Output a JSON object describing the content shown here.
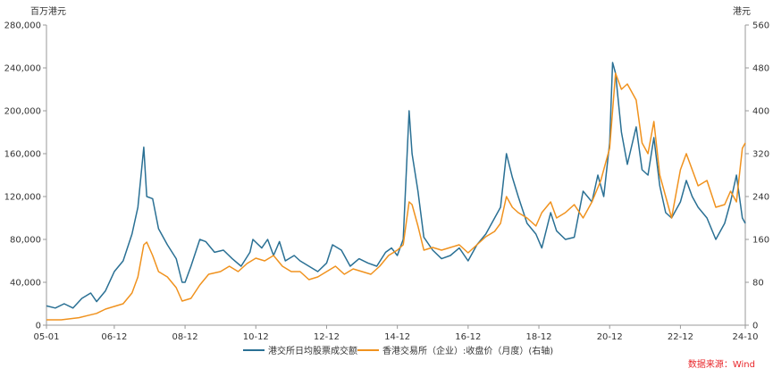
{
  "chart_data": {
    "type": "line",
    "left_unit": "百万港元",
    "right_unit": "港元",
    "x_ticks": [
      "05-01",
      "06-12",
      "08-12",
      "10-12",
      "12-12",
      "14-12",
      "16-12",
      "18-12",
      "20-12",
      "22-12",
      "24-10"
    ],
    "y_left": {
      "min": 0,
      "max": 280000,
      "ticks": [
        "0",
        "40,000",
        "80,000",
        "120,000",
        "160,000",
        "200,000",
        "240,000",
        "280,000"
      ]
    },
    "y_right": {
      "min": 0,
      "max": 560,
      "ticks": [
        "0",
        "80",
        "160",
        "240",
        "320",
        "400",
        "480",
        "560"
      ]
    },
    "grid": false,
    "legend_position": "bottom",
    "series": [
      {
        "name": "港交所日均股票成交额",
        "axis": "left",
        "color": "#2a7094",
        "points": [
          [
            "2005-01",
            18000
          ],
          [
            "2005-04",
            16000
          ],
          [
            "2005-07",
            20000
          ],
          [
            "2005-10",
            16000
          ],
          [
            "2006-01",
            25000
          ],
          [
            "2006-04",
            30000
          ],
          [
            "2006-06",
            22000
          ],
          [
            "2006-09",
            32000
          ],
          [
            "2006-12",
            50000
          ],
          [
            "2007-03",
            60000
          ],
          [
            "2007-06",
            85000
          ],
          [
            "2007-08",
            110000
          ],
          [
            "2007-10",
            166000
          ],
          [
            "2007-11",
            120000
          ],
          [
            "2008-01",
            118000
          ],
          [
            "2008-03",
            90000
          ],
          [
            "2008-06",
            75000
          ],
          [
            "2008-09",
            62000
          ],
          [
            "2008-11",
            40000
          ],
          [
            "2008-12",
            40000
          ],
          [
            "2009-02",
            55000
          ],
          [
            "2009-05",
            80000
          ],
          [
            "2009-07",
            78000
          ],
          [
            "2009-10",
            68000
          ],
          [
            "2010-01",
            70000
          ],
          [
            "2010-04",
            62000
          ],
          [
            "2010-07",
            55000
          ],
          [
            "2010-10",
            68000
          ],
          [
            "2010-11",
            80000
          ],
          [
            "2011-02",
            72000
          ],
          [
            "2011-04",
            80000
          ],
          [
            "2011-06",
            65000
          ],
          [
            "2011-08",
            78000
          ],
          [
            "2011-10",
            60000
          ],
          [
            "2012-01",
            65000
          ],
          [
            "2012-03",
            60000
          ],
          [
            "2012-06",
            55000
          ],
          [
            "2012-09",
            50000
          ],
          [
            "2012-12",
            58000
          ],
          [
            "2013-02",
            75000
          ],
          [
            "2013-05",
            70000
          ],
          [
            "2013-08",
            55000
          ],
          [
            "2013-11",
            62000
          ],
          [
            "2014-02",
            58000
          ],
          [
            "2014-05",
            55000
          ],
          [
            "2014-08",
            68000
          ],
          [
            "2014-10",
            72000
          ],
          [
            "2014-12",
            65000
          ],
          [
            "2015-02",
            80000
          ],
          [
            "2015-04",
            200000
          ],
          [
            "2015-05",
            160000
          ],
          [
            "2015-07",
            125000
          ],
          [
            "2015-09",
            82000
          ],
          [
            "2015-12",
            70000
          ],
          [
            "2016-03",
            62000
          ],
          [
            "2016-06",
            65000
          ],
          [
            "2016-09",
            72000
          ],
          [
            "2016-12",
            60000
          ],
          [
            "2017-03",
            75000
          ],
          [
            "2017-06",
            85000
          ],
          [
            "2017-09",
            100000
          ],
          [
            "2017-11",
            110000
          ],
          [
            "2018-01",
            160000
          ],
          [
            "2018-03",
            138000
          ],
          [
            "2018-05",
            120000
          ],
          [
            "2018-08",
            95000
          ],
          [
            "2018-11",
            85000
          ],
          [
            "2019-01",
            72000
          ],
          [
            "2019-04",
            105000
          ],
          [
            "2019-06",
            88000
          ],
          [
            "2019-09",
            80000
          ],
          [
            "2019-12",
            82000
          ],
          [
            "2020-03",
            125000
          ],
          [
            "2020-06",
            115000
          ],
          [
            "2020-08",
            140000
          ],
          [
            "2020-10",
            120000
          ],
          [
            "2020-12",
            170000
          ],
          [
            "2021-01",
            245000
          ],
          [
            "2021-02",
            235000
          ],
          [
            "2021-04",
            180000
          ],
          [
            "2021-06",
            150000
          ],
          [
            "2021-09",
            185000
          ],
          [
            "2021-11",
            145000
          ],
          [
            "2022-01",
            140000
          ],
          [
            "2022-03",
            175000
          ],
          [
            "2022-05",
            130000
          ],
          [
            "2022-07",
            105000
          ],
          [
            "2022-09",
            100000
          ],
          [
            "2022-12",
            115000
          ],
          [
            "2023-02",
            135000
          ],
          [
            "2023-04",
            120000
          ],
          [
            "2023-06",
            110000
          ],
          [
            "2023-09",
            100000
          ],
          [
            "2023-12",
            80000
          ],
          [
            "2024-03",
            95000
          ],
          [
            "2024-05",
            115000
          ],
          [
            "2024-07",
            140000
          ],
          [
            "2024-09",
            100000
          ],
          [
            "2024-10",
            95000
          ]
        ]
      },
      {
        "name": "香港交易所（企业）:收盘价（月度）(右轴)",
        "axis": "right",
        "color": "#f0921e",
        "points": [
          [
            "2005-01",
            10
          ],
          [
            "2005-06",
            10
          ],
          [
            "2005-12",
            14
          ],
          [
            "2006-03",
            18
          ],
          [
            "2006-06",
            22
          ],
          [
            "2006-09",
            30
          ],
          [
            "2006-12",
            35
          ],
          [
            "2007-03",
            40
          ],
          [
            "2007-06",
            60
          ],
          [
            "2007-08",
            90
          ],
          [
            "2007-10",
            150
          ],
          [
            "2007-11",
            155
          ],
          [
            "2008-01",
            130
          ],
          [
            "2008-03",
            100
          ],
          [
            "2008-06",
            90
          ],
          [
            "2008-09",
            70
          ],
          [
            "2008-11",
            45
          ],
          [
            "2009-02",
            50
          ],
          [
            "2009-05",
            75
          ],
          [
            "2009-08",
            95
          ],
          [
            "2009-12",
            100
          ],
          [
            "2010-03",
            110
          ],
          [
            "2010-06",
            100
          ],
          [
            "2010-09",
            115
          ],
          [
            "2010-12",
            125
          ],
          [
            "2011-03",
            120
          ],
          [
            "2011-06",
            130
          ],
          [
            "2011-09",
            110
          ],
          [
            "2011-12",
            100
          ],
          [
            "2012-03",
            100
          ],
          [
            "2012-06",
            85
          ],
          [
            "2012-09",
            90
          ],
          [
            "2012-12",
            100
          ],
          [
            "2013-03",
            110
          ],
          [
            "2013-06",
            95
          ],
          [
            "2013-09",
            105
          ],
          [
            "2013-12",
            100
          ],
          [
            "2014-03",
            95
          ],
          [
            "2014-06",
            110
          ],
          [
            "2014-09",
            130
          ],
          [
            "2014-12",
            140
          ],
          [
            "2015-02",
            150
          ],
          [
            "2015-04",
            230
          ],
          [
            "2015-05",
            225
          ],
          [
            "2015-07",
            185
          ],
          [
            "2015-09",
            140
          ],
          [
            "2015-12",
            145
          ],
          [
            "2016-03",
            140
          ],
          [
            "2016-06",
            145
          ],
          [
            "2016-09",
            150
          ],
          [
            "2016-12",
            135
          ],
          [
            "2017-03",
            150
          ],
          [
            "2017-06",
            165
          ],
          [
            "2017-09",
            175
          ],
          [
            "2017-11",
            190
          ],
          [
            "2018-01",
            240
          ],
          [
            "2018-03",
            220
          ],
          [
            "2018-05",
            210
          ],
          [
            "2018-08",
            200
          ],
          [
            "2018-11",
            185
          ],
          [
            "2019-01",
            210
          ],
          [
            "2019-04",
            230
          ],
          [
            "2019-06",
            200
          ],
          [
            "2019-09",
            210
          ],
          [
            "2019-12",
            225
          ],
          [
            "2020-03",
            200
          ],
          [
            "2020-06",
            230
          ],
          [
            "2020-09",
            270
          ],
          [
            "2020-12",
            330
          ],
          [
            "2021-01",
            400
          ],
          [
            "2021-02",
            470
          ],
          [
            "2021-04",
            440
          ],
          [
            "2021-06",
            450
          ],
          [
            "2021-09",
            420
          ],
          [
            "2021-11",
            340
          ],
          [
            "2022-01",
            320
          ],
          [
            "2022-03",
            380
          ],
          [
            "2022-05",
            280
          ],
          [
            "2022-07",
            240
          ],
          [
            "2022-09",
            200
          ],
          [
            "2022-12",
            290
          ],
          [
            "2023-02",
            320
          ],
          [
            "2023-04",
            290
          ],
          [
            "2023-06",
            260
          ],
          [
            "2023-09",
            270
          ],
          [
            "2023-12",
            220
          ],
          [
            "2024-03",
            225
          ],
          [
            "2024-05",
            250
          ],
          [
            "2024-07",
            230
          ],
          [
            "2024-09",
            330
          ],
          [
            "2024-10",
            340
          ]
        ]
      }
    ],
    "source": "数据来源：Wind",
    "source_color": "#e8262a"
  }
}
